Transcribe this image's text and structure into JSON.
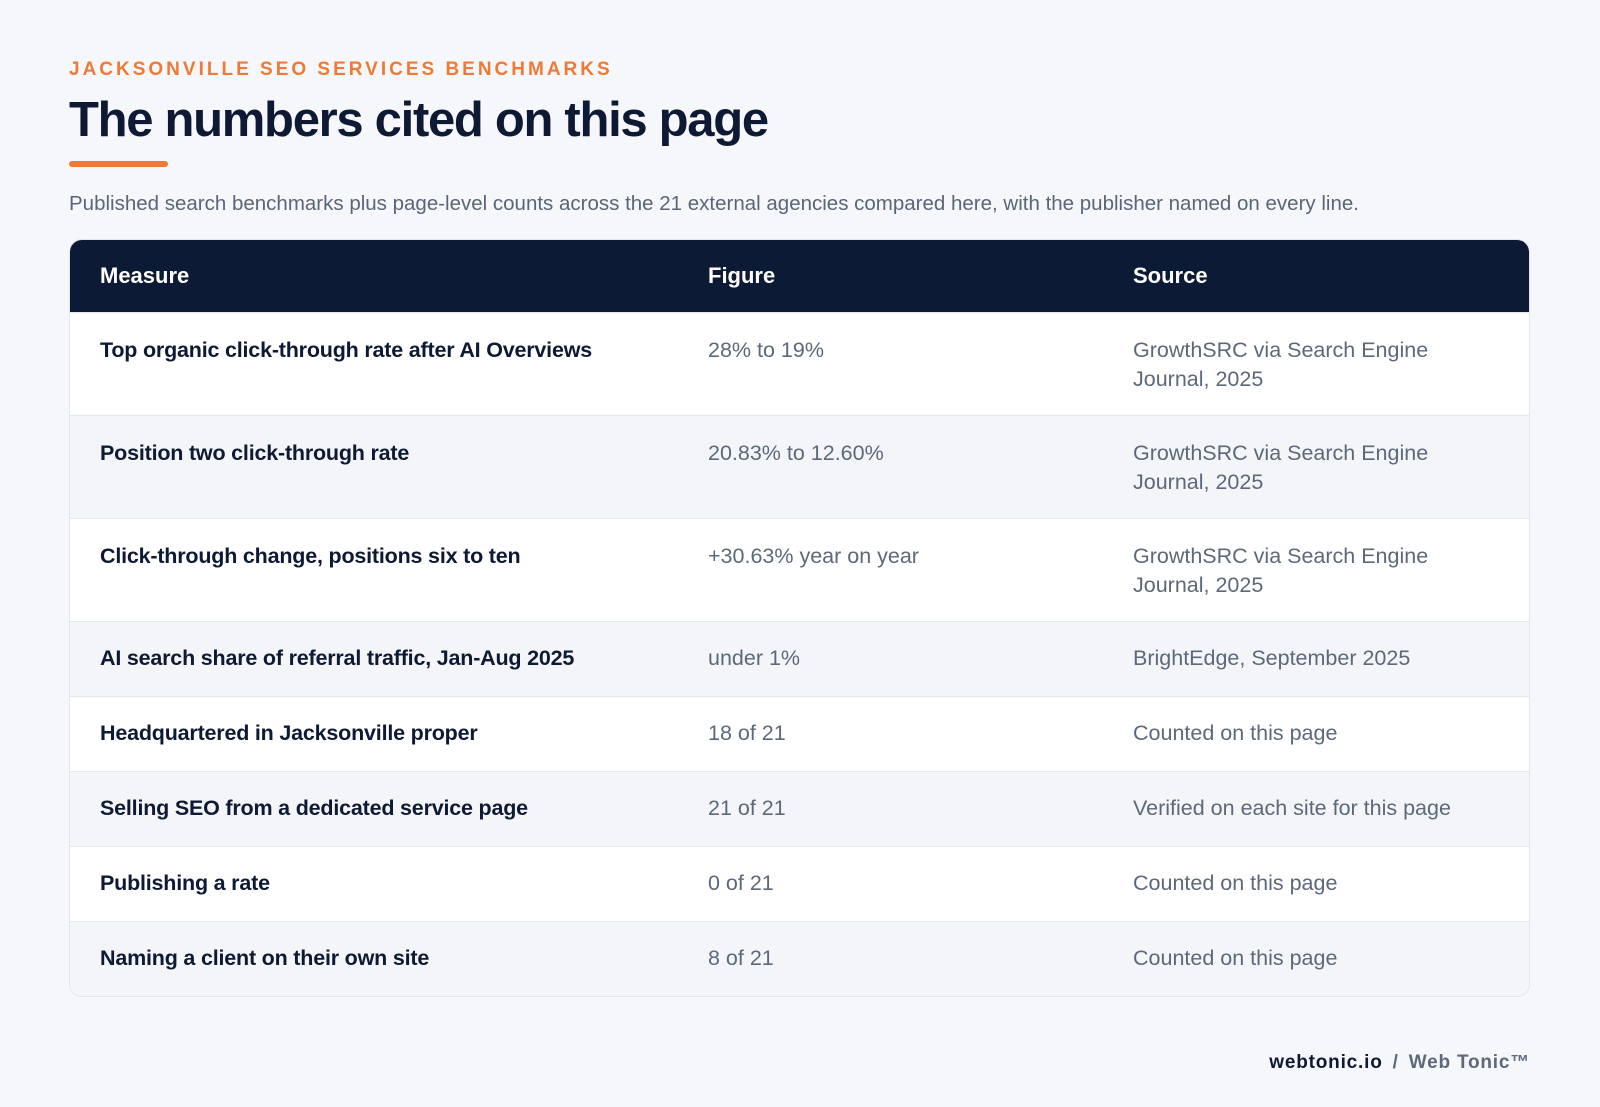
{
  "header": {
    "eyebrow": "JACKSONVILLE SEO SERVICES BENCHMARKS",
    "title": "The numbers cited on this page",
    "subtitle": "Published search benchmarks plus page-level counts across the 21 external agencies compared here, with the publisher named on every line.",
    "accent_color": "#f07a35"
  },
  "table": {
    "header_bg": "#0c1a35",
    "columns": [
      "Measure",
      "Figure",
      "Source"
    ],
    "rows": [
      {
        "measure": "Top organic click-through rate after AI Overviews",
        "figure": "28% to 19%",
        "source": "GrowthSRC via Search Engine Journal, 2025"
      },
      {
        "measure": "Position two click-through rate",
        "figure": "20.83% to 12.60%",
        "source": "GrowthSRC via Search Engine Journal, 2025"
      },
      {
        "measure": "Click-through change, positions six to ten",
        "figure": "+30.63% year on year",
        "source": "GrowthSRC via Search Engine Journal, 2025"
      },
      {
        "measure": "AI search share of referral traffic, Jan-Aug 2025",
        "figure": "under 1%",
        "source": "BrightEdge, September 2025"
      },
      {
        "measure": "Headquartered in Jacksonville proper",
        "figure": "18 of 21",
        "source": "Counted on this page"
      },
      {
        "measure": "Selling SEO from a dedicated service page",
        "figure": "21 of 21",
        "source": "Verified on each site for this page"
      },
      {
        "measure": "Publishing a rate",
        "figure": "0 of 21",
        "source": "Counted on this page"
      },
      {
        "measure": "Naming a client on their own site",
        "figure": "8 of 21",
        "source": "Counted on this page"
      }
    ]
  },
  "footer": {
    "domain": "webtonic.io",
    "separator": "/",
    "brand": "Web Tonic™"
  }
}
